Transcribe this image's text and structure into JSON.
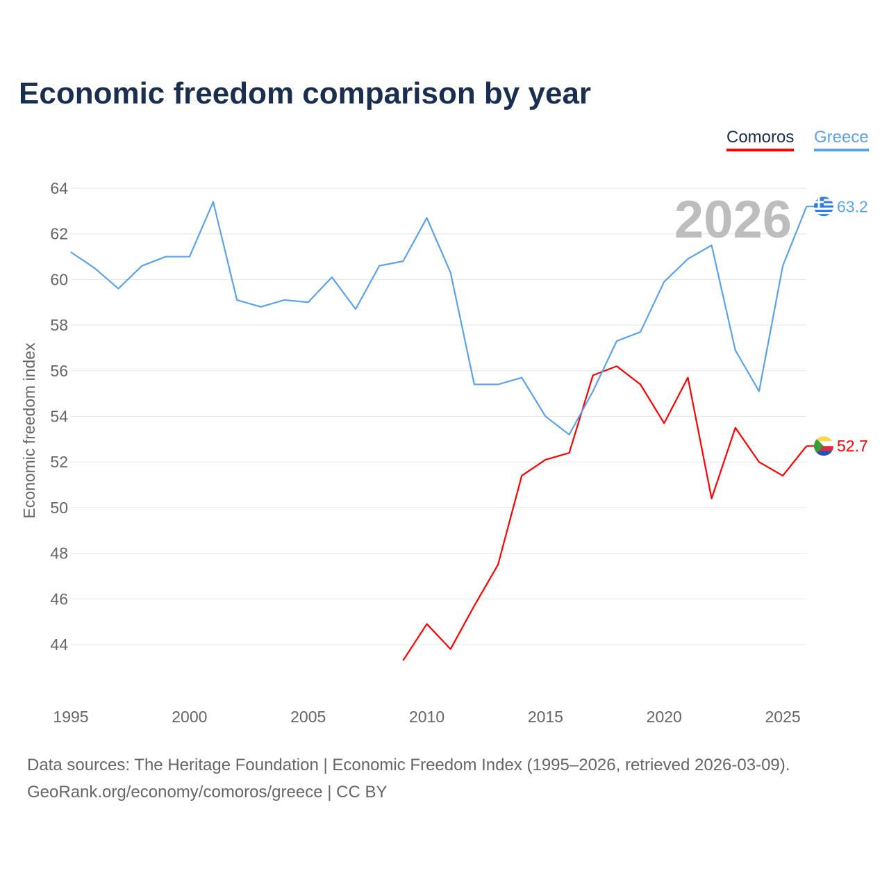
{
  "chart_data": {
    "type": "line",
    "title": "Economic freedom comparison by year",
    "xlabel": "",
    "ylabel": "Economic freedom index",
    "xlim": [
      1995,
      2026
    ],
    "ylim": [
      42,
      64.5
    ],
    "yticks": [
      44,
      46,
      48,
      50,
      52,
      54,
      56,
      58,
      60,
      62,
      64
    ],
    "xticks": [
      1995,
      2000,
      2005,
      2010,
      2015,
      2020,
      2025
    ],
    "grid": true,
    "legend_position": "top-right",
    "year_watermark": "2026",
    "series": [
      {
        "name": "Comoros",
        "color": "#ff0000",
        "end_label": "52.7",
        "x": [
          2009,
          2010,
          2011,
          2012,
          2013,
          2014,
          2015,
          2016,
          2017,
          2018,
          2019,
          2020,
          2021,
          2022,
          2023,
          2024,
          2025,
          2026
        ],
        "values": [
          43.3,
          44.9,
          43.8,
          45.7,
          47.5,
          51.4,
          52.1,
          52.4,
          55.8,
          56.2,
          55.4,
          53.7,
          55.7,
          50.4,
          53.5,
          52.0,
          51.4,
          52.7
        ]
      },
      {
        "name": "Greece",
        "color": "#5aa3ea",
        "end_label": "63.2",
        "x": [
          1995,
          1996,
          1997,
          1998,
          1999,
          2000,
          2001,
          2002,
          2003,
          2004,
          2005,
          2006,
          2007,
          2008,
          2009,
          2010,
          2011,
          2012,
          2013,
          2014,
          2015,
          2016,
          2017,
          2018,
          2019,
          2020,
          2021,
          2022,
          2023,
          2024,
          2025,
          2026
        ],
        "values": [
          61.2,
          60.5,
          59.6,
          60.6,
          61.0,
          61.0,
          63.4,
          59.1,
          58.8,
          59.1,
          59.0,
          60.1,
          58.7,
          60.6,
          60.8,
          62.7,
          60.3,
          55.4,
          55.4,
          55.7,
          54.0,
          53.2,
          55.1,
          57.3,
          57.7,
          59.9,
          60.9,
          61.5,
          56.9,
          55.1,
          60.6,
          63.2
        ]
      }
    ]
  },
  "sources": {
    "line1": "Data sources: The Heritage Foundation | Economic Freedom Index (1995–2026, retrieved 2026-03-09).",
    "line2": "GeoRank.org/economy/comoros/greece | CC BY"
  }
}
